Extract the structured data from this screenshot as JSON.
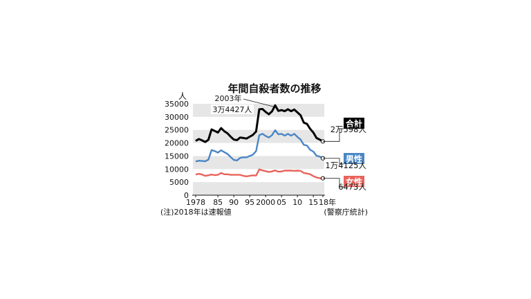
{
  "chart_data": {
    "type": "line",
    "title": "年間自殺者数の推移",
    "unit": "人",
    "ylim": [
      0,
      35000
    ],
    "yticks": [
      "0",
      "5000",
      "10000",
      "15000",
      "20000",
      "25000",
      "30000",
      "35000"
    ],
    "xlim": [
      1978,
      2018
    ],
    "xticks": [
      {
        "x": 1978,
        "label": "1978"
      },
      {
        "x": 1985,
        "label": "85"
      },
      {
        "x": 1990,
        "label": "90"
      },
      {
        "x": 1995,
        "label": "95"
      },
      {
        "x": 2000,
        "label": "2000"
      },
      {
        "x": 2005,
        "label": "05"
      },
      {
        "x": 2010,
        "label": "10"
      },
      {
        "x": 2015,
        "label": "15"
      },
      {
        "x": 2018,
        "label": "18年"
      }
    ],
    "x": [
      1978,
      1979,
      1980,
      1981,
      1982,
      1983,
      1984,
      1985,
      1986,
      1987,
      1988,
      1989,
      1990,
      1991,
      1992,
      1993,
      1994,
      1995,
      1996,
      1997,
      1998,
      1999,
      2000,
      2001,
      2002,
      2003,
      2004,
      2005,
      2006,
      2007,
      2008,
      2009,
      2010,
      2011,
      2012,
      2013,
      2014,
      2015,
      2016,
      2017,
      2018
    ],
    "series": [
      {
        "name": "合計",
        "color": "#000000",
        "values": [
          20800,
          21500,
          21000,
          20400,
          21200,
          25200,
          24600,
          24000,
          25700,
          24500,
          23700,
          22400,
          21300,
          21100,
          22100,
          21900,
          21700,
          22400,
          23100,
          24400,
          32900,
          33000,
          31900,
          31000,
          32100,
          34427,
          32300,
          32600,
          32200,
          32900,
          32200,
          32800,
          31700,
          30600,
          27800,
          27300,
          25400,
          24000,
          21900,
          21300,
          20598
        ],
        "end_label": "2万598人"
      },
      {
        "name": "男性",
        "color": "#4a86c5",
        "values": [
          12900,
          13200,
          13100,
          13000,
          13600,
          17300,
          16900,
          16300,
          17200,
          16500,
          15800,
          14600,
          13500,
          13300,
          14300,
          14500,
          14500,
          15000,
          15500,
          16900,
          23000,
          23500,
          22700,
          22100,
          23000,
          24900,
          23300,
          23500,
          22800,
          23500,
          22800,
          23500,
          22300,
          21300,
          19300,
          19000,
          17400,
          16700,
          15100,
          14800,
          14125
        ],
        "end_label": "1万4125人"
      },
      {
        "name": "女性",
        "color": "#e8635a",
        "values": [
          7900,
          8200,
          7900,
          7400,
          7600,
          7900,
          7700,
          7800,
          8500,
          8000,
          8000,
          7800,
          7800,
          7800,
          7800,
          7400,
          7200,
          7400,
          7600,
          7500,
          9900,
          9500,
          9200,
          8900,
          9100,
          9500,
          9000,
          9100,
          9400,
          9400,
          9400,
          9300,
          9400,
          9300,
          8500,
          8300,
          8000,
          7300,
          6800,
          6500,
          6473
        ],
        "end_label": "6473人"
      }
    ],
    "annotation": {
      "x": 2003,
      "year_label": "2003年",
      "value_label": "3万4427人"
    },
    "notes": {
      "left": "(注)2018年は速報値",
      "right": "(警察庁統計)"
    },
    "grid": "alternating horizontal bands",
    "legend": "right, at line ends"
  }
}
